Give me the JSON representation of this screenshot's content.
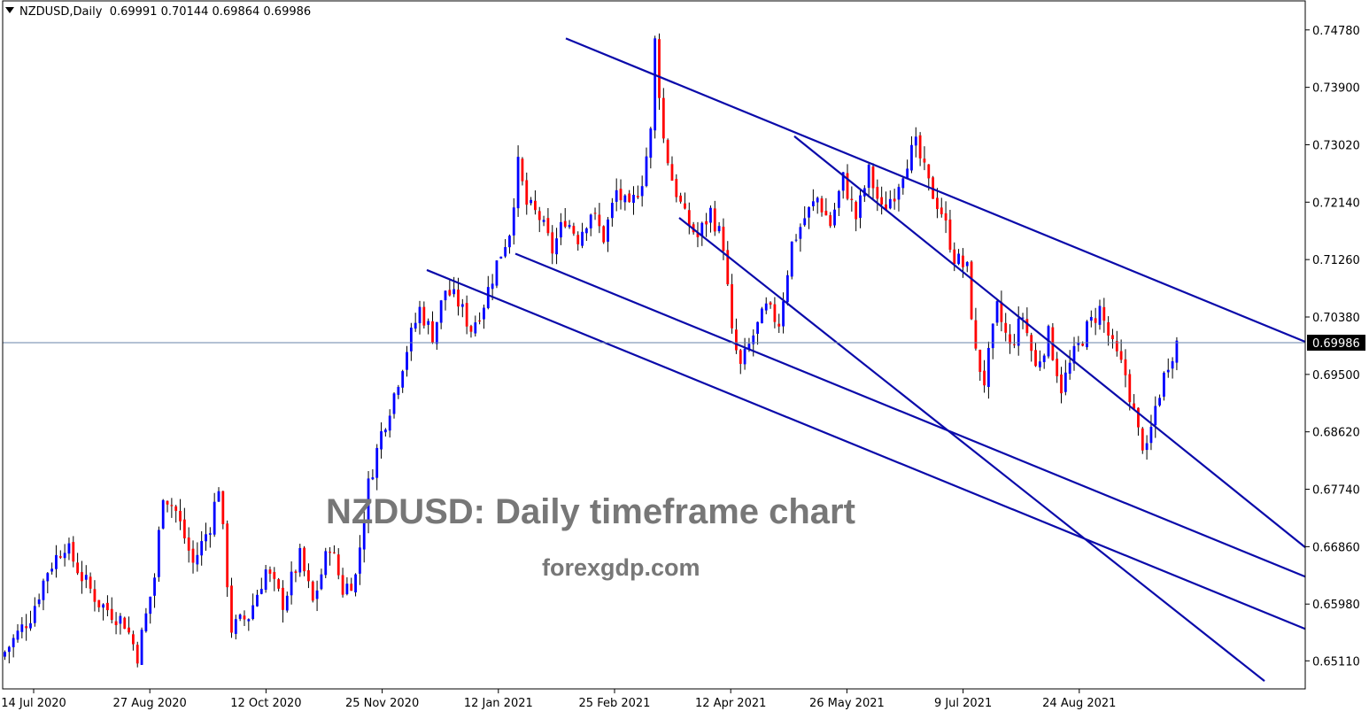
{
  "header": {
    "symbol": "NZDUSD,Daily",
    "ohlc": "0.69991 0.70144 0.69864 0.69986"
  },
  "watermark": {
    "title": "NZDUSD: Daily timeframe chart",
    "site": "forexgdp.com"
  },
  "colors": {
    "bull": "#0000ff",
    "bear": "#ff0000",
    "wick": "#000000",
    "trendline": "#0a0aaa",
    "price_line": "#6a83a8",
    "axis": "#000000"
  },
  "chart_data": {
    "type": "candlestick",
    "title": "",
    "xlabel": "",
    "ylabel": "",
    "ylim": [
      0.6468,
      0.7513
    ],
    "grid": false,
    "x_ticks": [
      "14 Jul 2020",
      "27 Aug 2020",
      "12 Oct 2020",
      "25 Nov 2020",
      "12 Jan 2021",
      "25 Feb 2021",
      "12 Apr 2021",
      "26 May 2021",
      "9 Jul 2021",
      "24 Aug 2021"
    ],
    "y_ticks": [
      "0.74780",
      "0.73900",
      "0.73020",
      "0.72140",
      "0.71260",
      "0.70380",
      "0.69500",
      "0.68620",
      "0.67740",
      "0.66860",
      "0.65980",
      "0.65110"
    ],
    "current_price": 0.69986,
    "current_price_label": "0.69986",
    "anchors": [
      [
        0,
        0.6525
      ],
      [
        6,
        0.658
      ],
      [
        10,
        0.665
      ],
      [
        14,
        0.669
      ],
      [
        18,
        0.664
      ],
      [
        22,
        0.66
      ],
      [
        28,
        0.657
      ],
      [
        31,
        0.652
      ],
      [
        35,
        0.664
      ],
      [
        37,
        0.677
      ],
      [
        40,
        0.674
      ],
      [
        44,
        0.666
      ],
      [
        48,
        0.672
      ],
      [
        50,
        0.678
      ],
      [
        53,
        0.656
      ],
      [
        57,
        0.658
      ],
      [
        61,
        0.665
      ],
      [
        65,
        0.66
      ],
      [
        69,
        0.667
      ],
      [
        72,
        0.66
      ],
      [
        76,
        0.669
      ],
      [
        79,
        0.662
      ],
      [
        82,
        0.664
      ],
      [
        85,
        0.678
      ],
      [
        88,
        0.686
      ],
      [
        91,
        0.692
      ],
      [
        94,
        0.699
      ],
      [
        97,
        0.705
      ],
      [
        100,
        0.701
      ],
      [
        103,
        0.708
      ],
      [
        106,
        0.706
      ],
      [
        109,
        0.702
      ],
      [
        112,
        0.706
      ],
      [
        115,
        0.712
      ],
      [
        118,
        0.717
      ],
      [
        120,
        0.727
      ],
      [
        122,
        0.721
      ],
      [
        125,
        0.719
      ],
      [
        128,
        0.714
      ],
      [
        131,
        0.719
      ],
      [
        134,
        0.716
      ],
      [
        137,
        0.72
      ],
      [
        140,
        0.716
      ],
      [
        143,
        0.723
      ],
      [
        146,
        0.72
      ],
      [
        149,
        0.725
      ],
      [
        151,
        0.732
      ],
      [
        152,
        0.746
      ],
      [
        154,
        0.731
      ],
      [
        156,
        0.725
      ],
      [
        159,
        0.719
      ],
      [
        162,
        0.716
      ],
      [
        165,
        0.72
      ],
      [
        168,
        0.715
      ],
      [
        170,
        0.701
      ],
      [
        172,
        0.696
      ],
      [
        175,
        0.701
      ],
      [
        178,
        0.705
      ],
      [
        181,
        0.703
      ],
      [
        184,
        0.715
      ],
      [
        187,
        0.719
      ],
      [
        190,
        0.722
      ],
      [
        193,
        0.718
      ],
      [
        196,
        0.725
      ],
      [
        199,
        0.719
      ],
      [
        202,
        0.726
      ],
      [
        205,
        0.72
      ],
      [
        208,
        0.723
      ],
      [
        211,
        0.728
      ],
      [
        213,
        0.73
      ],
      [
        216,
        0.724
      ],
      [
        219,
        0.72
      ],
      [
        222,
        0.713
      ],
      [
        225,
        0.711
      ],
      [
        227,
        0.698
      ],
      [
        229,
        0.694
      ],
      [
        232,
        0.705
      ],
      [
        235,
        0.699
      ],
      [
        238,
        0.704
      ],
      [
        241,
        0.696
      ],
      [
        244,
        0.701
      ],
      [
        247,
        0.693
      ],
      [
        250,
        0.698
      ],
      [
        253,
        0.702
      ],
      [
        256,
        0.705
      ],
      [
        259,
        0.699
      ],
      [
        262,
        0.695
      ],
      [
        265,
        0.686
      ],
      [
        267,
        0.683
      ],
      [
        269,
        0.69
      ],
      [
        272,
        0.697
      ],
      [
        274,
        0.6999
      ]
    ],
    "trendlines": [
      {
        "name": "upper-channel-top",
        "from": [
          "25 Feb 2021",
          0.7465
        ],
        "to": [
          "right edge",
          0.7
        ]
      },
      {
        "name": "steep-upper-line",
        "from": [
          "26 May 2021",
          0.7315
        ],
        "to": [
          "right edge",
          0.6685
        ]
      },
      {
        "name": "steep-lower-line",
        "from": [
          "12 Apr 2021",
          0.719
        ],
        "to": [
          "bottom edge",
          0.648
        ]
      },
      {
        "name": "lower-channel-top",
        "from": [
          "12 Jan 2021",
          0.7135
        ],
        "to": [
          "right edge",
          0.664
        ]
      },
      {
        "name": "lower-channel-bottom",
        "from": [
          "25 Nov 2020",
          0.711
        ],
        "to": [
          "right edge",
          0.656
        ]
      }
    ]
  }
}
